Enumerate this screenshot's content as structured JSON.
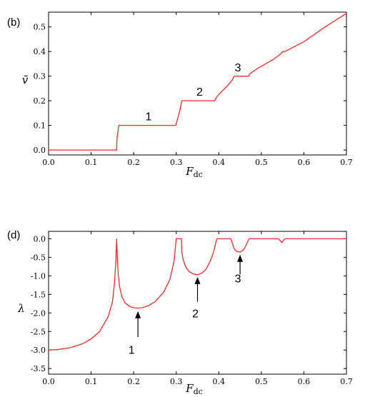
{
  "chart_data": [
    {
      "panel": "(b)",
      "type": "line",
      "xlabel": "F",
      "xlabel_sub": "dc",
      "ylabel": "v̄",
      "xlim": [
        0.0,
        0.7
      ],
      "ylim": [
        -0.02,
        0.56
      ],
      "xticks": [
        "0.0",
        "0.1",
        "0.2",
        "0.3",
        "0.4",
        "0.5",
        "0.6",
        "0.7"
      ],
      "yticks": [
        "0.0",
        "0.1",
        "0.2",
        "0.3",
        "0.4",
        "0.5"
      ],
      "series": [
        {
          "color": "#ff2a2a",
          "x": [
            0.0,
            0.16,
            0.161,
            0.165,
            0.299,
            0.307,
            0.313,
            0.39,
            0.395,
            0.405,
            0.42,
            0.432,
            0.436,
            0.47,
            0.473,
            0.49,
            0.51,
            0.53,
            0.545,
            0.55,
            0.555,
            0.6,
            0.65,
            0.7
          ],
          "y": [
            0.0,
            0.0,
            0.05,
            0.1,
            0.1,
            0.15,
            0.2,
            0.2,
            0.215,
            0.235,
            0.26,
            0.285,
            0.3,
            0.3,
            0.31,
            0.33,
            0.35,
            0.37,
            0.39,
            0.4,
            0.4,
            0.44,
            0.5,
            0.555
          ]
        }
      ],
      "annotations": [
        {
          "text": "1",
          "x": 0.235,
          "y": 0.12
        },
        {
          "text": "2",
          "x": 0.355,
          "y": 0.22
        },
        {
          "text": "3",
          "x": 0.445,
          "y": 0.32
        }
      ]
    },
    {
      "panel": "(d)",
      "type": "line",
      "xlabel": "F",
      "xlabel_sub": "dc",
      "ylabel": "λ",
      "xlim": [
        0.0,
        0.7
      ],
      "ylim": [
        -3.65,
        0.2
      ],
      "xticks": [
        "0.0",
        "0.1",
        "0.2",
        "0.3",
        "0.4",
        "0.5",
        "0.6",
        "0.7"
      ],
      "yticks": [
        "0.0",
        "-0.5",
        "-1.0",
        "-1.5",
        "-2.0",
        "-2.5",
        "-3.0",
        "-3.5"
      ],
      "series": [
        {
          "color": "#ff2a2a",
          "x": [
            0.0,
            0.02,
            0.05,
            0.08,
            0.1,
            0.12,
            0.14,
            0.15,
            0.155,
            0.158,
            0.16,
            0.162,
            0.164,
            0.167,
            0.172,
            0.18,
            0.19,
            0.2,
            0.21,
            0.22,
            0.235,
            0.25,
            0.27,
            0.285,
            0.295,
            0.3,
            0.302,
            0.304,
            0.305,
            0.312,
            0.313,
            0.316,
            0.322,
            0.33,
            0.34,
            0.35,
            0.36,
            0.37,
            0.38,
            0.388,
            0.393,
            0.396,
            0.397,
            0.4,
            0.41,
            0.42,
            0.428,
            0.432,
            0.434,
            0.437,
            0.442,
            0.45,
            0.458,
            0.465,
            0.469,
            0.471,
            0.5,
            0.54,
            0.545,
            0.548,
            0.551,
            0.555,
            0.6,
            0.65,
            0.7
          ],
          "y": [
            -3.0,
            -2.99,
            -2.94,
            -2.83,
            -2.7,
            -2.5,
            -2.1,
            -1.7,
            -1.2,
            -0.6,
            0.0,
            -0.6,
            -1.0,
            -1.3,
            -1.55,
            -1.73,
            -1.82,
            -1.86,
            -1.87,
            -1.86,
            -1.8,
            -1.7,
            -1.45,
            -1.1,
            -0.6,
            0.0,
            0.0,
            0.0,
            0.0,
            0.0,
            -0.35,
            -0.55,
            -0.75,
            -0.88,
            -0.95,
            -0.97,
            -0.93,
            -0.82,
            -0.6,
            -0.35,
            -0.1,
            0.0,
            0.0,
            0.0,
            0.0,
            0.0,
            0.0,
            -0.12,
            -0.2,
            -0.28,
            -0.34,
            -0.36,
            -0.3,
            -0.15,
            -0.05,
            0.0,
            0.0,
            0.0,
            -0.06,
            -0.1,
            -0.06,
            0.0,
            0.0,
            0.0,
            0.0
          ]
        }
      ],
      "annotations": [
        {
          "text": "1",
          "x": 0.195,
          "y": -3.1
        },
        {
          "text": "2",
          "x": 0.345,
          "y": -2.12
        },
        {
          "text": "3",
          "x": 0.445,
          "y": -1.18
        }
      ],
      "arrows": [
        {
          "x": 0.21,
          "y_from": -2.65,
          "y_to": -1.95
        },
        {
          "x": 0.35,
          "y_from": -1.7,
          "y_to": -1.03
        },
        {
          "x": 0.45,
          "y_from": -0.96,
          "y_to": -0.43
        }
      ]
    }
  ]
}
